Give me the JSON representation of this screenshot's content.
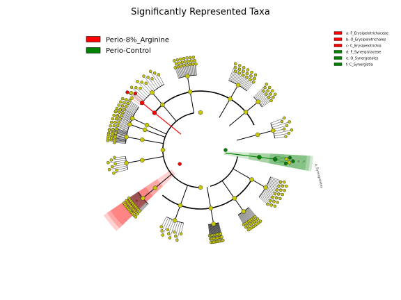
{
  "chart_data": {
    "type": "cladogram",
    "title": "Significantly Represented Taxa",
    "groups": [
      {
        "name": "Perio-8%_Arginine",
        "color": "#ff0000"
      },
      {
        "name": "Perio-Control",
        "color": "#008000"
      }
    ],
    "highlighted_clades": [
      {
        "letter": "a",
        "label": "F_Erysipelotrichaceae",
        "group": "Perio-8%_Arginine",
        "color": "#ff0000"
      },
      {
        "letter": "b",
        "label": "O_Erysipelotrichales",
        "group": "Perio-8%_Arginine",
        "color": "#ff0000"
      },
      {
        "letter": "c",
        "label": "C_Erysipelotrichia",
        "group": "Perio-8%_Arginine",
        "color": "#ff0000"
      },
      {
        "letter": "d",
        "label": "F_Synergistaceae",
        "group": "Perio-Control",
        "color": "#008000"
      },
      {
        "letter": "e",
        "label": "O_Synergistales",
        "group": "Perio-Control",
        "color": "#008000"
      },
      {
        "letter": "f",
        "label": "C_Synergistia",
        "group": "Perio-Control",
        "color": "#008000"
      }
    ],
    "sector_label_green": "p_Synergistetes",
    "node_color_nonsignificant": "#c8c800"
  }
}
